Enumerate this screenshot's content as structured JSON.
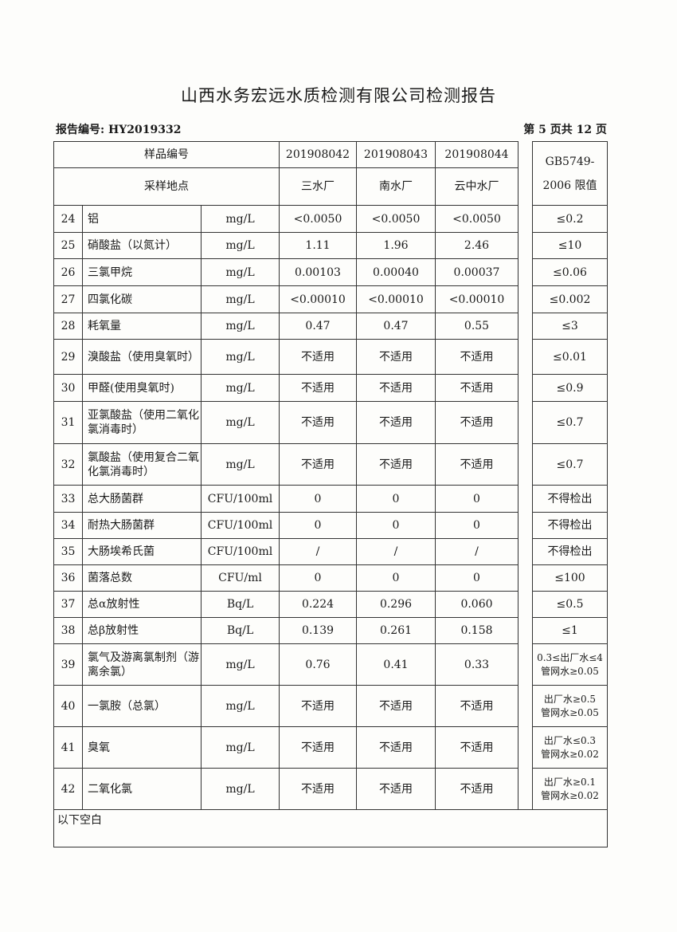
{
  "title": "山西水务宏远水质检测有限公司检测报告",
  "report_no": "报告编号: HY2019332",
  "page_no": "第 5 页共 12 页",
  "header": {
    "sample_no_label": "样品编号",
    "location_label": "采样地点",
    "limit_label": "GB5749-2006 限值",
    "samples": [
      "201908042",
      "201908043",
      "201908044"
    ],
    "locations": [
      "三水厂",
      "南水厂",
      "云中水厂"
    ]
  },
  "rows": [
    {
      "no": "24",
      "name": "铝",
      "unit": "mg/L",
      "v": [
        "<0.0050",
        "<0.0050",
        "<0.0050"
      ],
      "limit": "≤0.2"
    },
    {
      "no": "25",
      "name": "硝酸盐（以氮计）",
      "unit": "mg/L",
      "v": [
        "1.11",
        "1.96",
        "2.46"
      ],
      "limit": "≤10"
    },
    {
      "no": "26",
      "name": "三氯甲烷",
      "unit": "mg/L",
      "v": [
        "0.00103",
        "0.00040",
        "0.00037"
      ],
      "limit": "≤0.06"
    },
    {
      "no": "27",
      "name": "四氯化碳",
      "unit": "mg/L",
      "v": [
        "<0.00010",
        "<0.00010",
        "<0.00010"
      ],
      "limit": "≤0.002"
    },
    {
      "no": "28",
      "name": "耗氧量",
      "unit": "mg/L",
      "v": [
        "0.47",
        "0.47",
        "0.55"
      ],
      "limit": "≤3"
    },
    {
      "no": "29",
      "name": "溴酸盐（使用臭氧时）",
      "unit": "mg/L",
      "v": [
        "不适用",
        "不适用",
        "不适用"
      ],
      "limit": "≤0.01"
    },
    {
      "no": "30",
      "name": "甲醛(使用臭氧时)",
      "unit": "mg/L",
      "v": [
        "不适用",
        "不适用",
        "不适用"
      ],
      "limit": "≤0.9"
    },
    {
      "no": "31",
      "name": "亚氯酸盐（使用二氧化氯消毒时）",
      "unit": "mg/L",
      "v": [
        "不适用",
        "不适用",
        "不适用"
      ],
      "limit": "≤0.7"
    },
    {
      "no": "32",
      "name": "氯酸盐（使用复合二氧化氯消毒时）",
      "unit": "mg/L",
      "v": [
        "不适用",
        "不适用",
        "不适用"
      ],
      "limit": "≤0.7"
    },
    {
      "no": "33",
      "name": "总大肠菌群",
      "unit": "CFU/100ml",
      "v": [
        "0",
        "0",
        "0"
      ],
      "limit": "不得检出"
    },
    {
      "no": "34",
      "name": "耐热大肠菌群",
      "unit": "CFU/100ml",
      "v": [
        "0",
        "0",
        "0"
      ],
      "limit": "不得检出"
    },
    {
      "no": "35",
      "name": "大肠埃希氏菌",
      "unit": "CFU/100ml",
      "v": [
        "/",
        "/",
        "/"
      ],
      "limit": "不得检出"
    },
    {
      "no": "36",
      "name": "菌落总数",
      "unit": "CFU/ml",
      "v": [
        "0",
        "0",
        "0"
      ],
      "limit": "≤100"
    },
    {
      "no": "37",
      "name": "总α放射性",
      "unit": "Bq/L",
      "v": [
        "0.224",
        "0.296",
        "0.060"
      ],
      "limit": "≤0.5"
    },
    {
      "no": "38",
      "name": "总β放射性",
      "unit": "Bq/L",
      "v": [
        "0.139",
        "0.261",
        "0.158"
      ],
      "limit": "≤1"
    },
    {
      "no": "39",
      "name": "氯气及游离氯制剂（游离余氯）",
      "unit": "mg/L",
      "v": [
        "0.76",
        "0.41",
        "0.33"
      ],
      "limit": "0.3≤出厂水≤4 管网水≥0.05"
    },
    {
      "no": "40",
      "name": "一氯胺（总氯）",
      "unit": "mg/L",
      "v": [
        "不适用",
        "不适用",
        "不适用"
      ],
      "limit": "出厂水≥0.5 管网水≥0.05"
    },
    {
      "no": "41",
      "name": "臭氧",
      "unit": "mg/L",
      "v": [
        "不适用",
        "不适用",
        "不适用"
      ],
      "limit": "出厂水≤0.3 管网水≥0.02"
    },
    {
      "no": "42",
      "name": "二氧化氯",
      "unit": "mg/L",
      "v": [
        "不适用",
        "不适用",
        "不适用"
      ],
      "limit": "出厂水≥0.1 管网水≥0.02"
    }
  ],
  "footer": "以下空白"
}
